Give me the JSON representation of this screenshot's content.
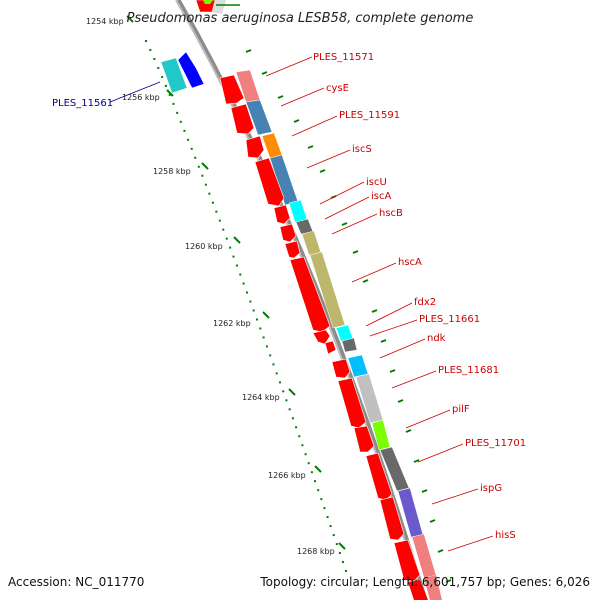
{
  "header": {
    "title": "Pseudomonas aeruginosa LESB58, complete genome"
  },
  "footer": {
    "accession": "Accession: NC_011770",
    "summary": "Topology: circular; Length: 6,601,757 bp; Genes: 6,026"
  },
  "colors": {
    "forward_arrow": "#ff0000",
    "reverse_label": "#00008b",
    "forward_label": "#cc0000",
    "tick": "#008000",
    "backbone": "#8c8c8c"
  },
  "ticks": [
    {
      "label": "1254 kbp"
    },
    {
      "label": "1256 kbp"
    },
    {
      "label": "1258 kbp"
    },
    {
      "label": "1260 kbp"
    },
    {
      "label": "1262 kbp"
    },
    {
      "label": "1264 kbp"
    },
    {
      "label": "1266 kbp"
    },
    {
      "label": "1268 kbp"
    }
  ],
  "reverse_genes": [
    {
      "label": "PLES_11561",
      "color": "#20c8c8"
    }
  ],
  "forward_genes": [
    {
      "label": "PLES_11571",
      "color": "#f08080"
    },
    {
      "label": "cysE",
      "color": "#4682b4"
    },
    {
      "label": "PLES_11591",
      "color": "#ff8c00"
    },
    {
      "label": "iscS",
      "color": "#4682b4"
    },
    {
      "label": "iscU",
      "color": "#00ffff"
    },
    {
      "label": "iscA",
      "color": "#696969"
    },
    {
      "label": "hscB",
      "color": "#bdb76b"
    },
    {
      "label": "hscA",
      "color": "#bdb76b"
    },
    {
      "label": "fdx2",
      "color": "#00ffff"
    },
    {
      "label": "PLES_11661",
      "color": "#696969"
    },
    {
      "label": "ndk",
      "color": "#00bfff"
    },
    {
      "label": "PLES_11681",
      "color": "#c0c0c0"
    },
    {
      "label": "pilF",
      "color": "#7cfc00"
    },
    {
      "label": "PLES_11701",
      "color": "#696969"
    },
    {
      "label": "ispG",
      "color": "#6a5acd"
    },
    {
      "label": "hisS",
      "color": "#f08080"
    }
  ]
}
